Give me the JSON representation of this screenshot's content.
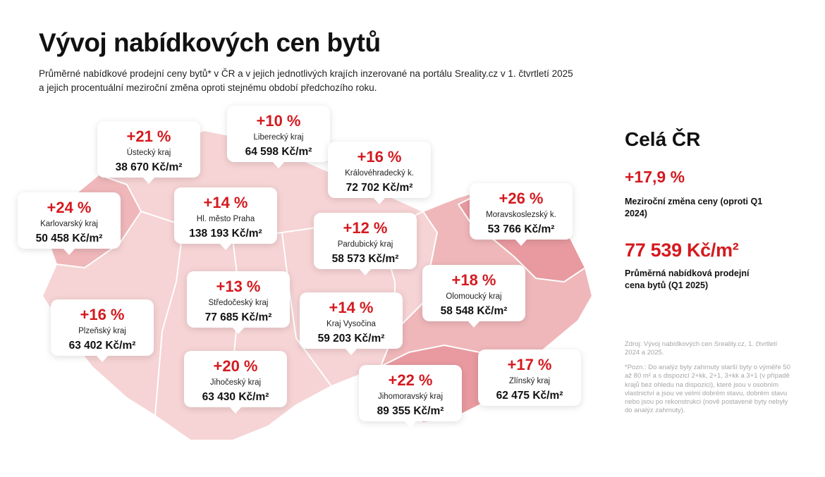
{
  "header": {
    "title": "Vývoj nabídkových cen bytů",
    "subtitle": "Průměrné nabídkové prodejní ceny bytů* v ČR a v jejich jednotlivých krajích inzerované na portálu Sreality.cz v 1. čtvrtletí 2025 a jejich procentuální meziroční změna oproti stejnému období předchozího roku."
  },
  "colors": {
    "accent": "#d41a1f",
    "map_light": "#f6d3d4",
    "map_mid": "#efb7b9",
    "map_dark": "#e89aa0"
  },
  "regions": [
    {
      "pct": "+10 %",
      "name": "Liberecký kraj",
      "price": "64 598 Kč/m²"
    },
    {
      "pct": "+21 %",
      "name": "Ústecký kraj",
      "price": "38 670 Kč/m²"
    },
    {
      "pct": "+16 %",
      "name": "Královéhradecký k.",
      "price": "72 702 Kč/m²"
    },
    {
      "pct": "+24 %",
      "name": "Karlovarský kraj",
      "price": "50 458 Kč/m²"
    },
    {
      "pct": "+14 %",
      "name": "Hl. město Praha",
      "price": "138 193 Kč/m²"
    },
    {
      "pct": "+26 %",
      "name": "Moravskoslezský k.",
      "price": "53 766 Kč/m²"
    },
    {
      "pct": "+12 %",
      "name": "Pardubický kraj",
      "price": "58 573 Kč/m²"
    },
    {
      "pct": "+13 %",
      "name": "Středočeský kraj",
      "price": "77 685 Kč/m²"
    },
    {
      "pct": "+18 %",
      "name": "Olomoucký kraj",
      "price": "58 548 Kč/m²"
    },
    {
      "pct": "+16 %",
      "name": "Plzeňský kraj",
      "price": "63 402 Kč/m²"
    },
    {
      "pct": "+14 %",
      "name": "Kraj Vysočina",
      "price": "59 203 Kč/m²"
    },
    {
      "pct": "+20 %",
      "name": "Jihočeský kraj",
      "price": "63 430 Kč/m²"
    },
    {
      "pct": "+22 %",
      "name": "Jihomoravský kraj",
      "price": "89 355 Kč/m²"
    },
    {
      "pct": "+17 %",
      "name": "Zlínský kraj",
      "price": "62 475 Kč/m²"
    }
  ],
  "summary": {
    "title": "Celá ČR",
    "change": "+17,9 %",
    "change_desc": "Meziroční změna ceny (oproti Q1 2024)",
    "price": "77 539 Kč/m²",
    "price_desc": "Průměrná nabídková prodejní cena bytů (Q1 2025)",
    "source": "Zdroj: Vývoj nabídkových cen Sreality.cz, 1. čtvrtletí 2024 a 2025.",
    "note": "*Pozn.: Do analýz byly zahrnuty starší byty o výměře 50 až 80 m² a s dispozicí 2+kk, 2+1, 3+kk a 3+1 (v případě krajů bez ohledu na dispozici), které jsou v osobním vlastnictví a jsou ve velmi dobrém stavu, dobrém stavu nebo jsou po rekonstrukci (nově postavené byty nebyly do analýz zahrnuty)."
  }
}
